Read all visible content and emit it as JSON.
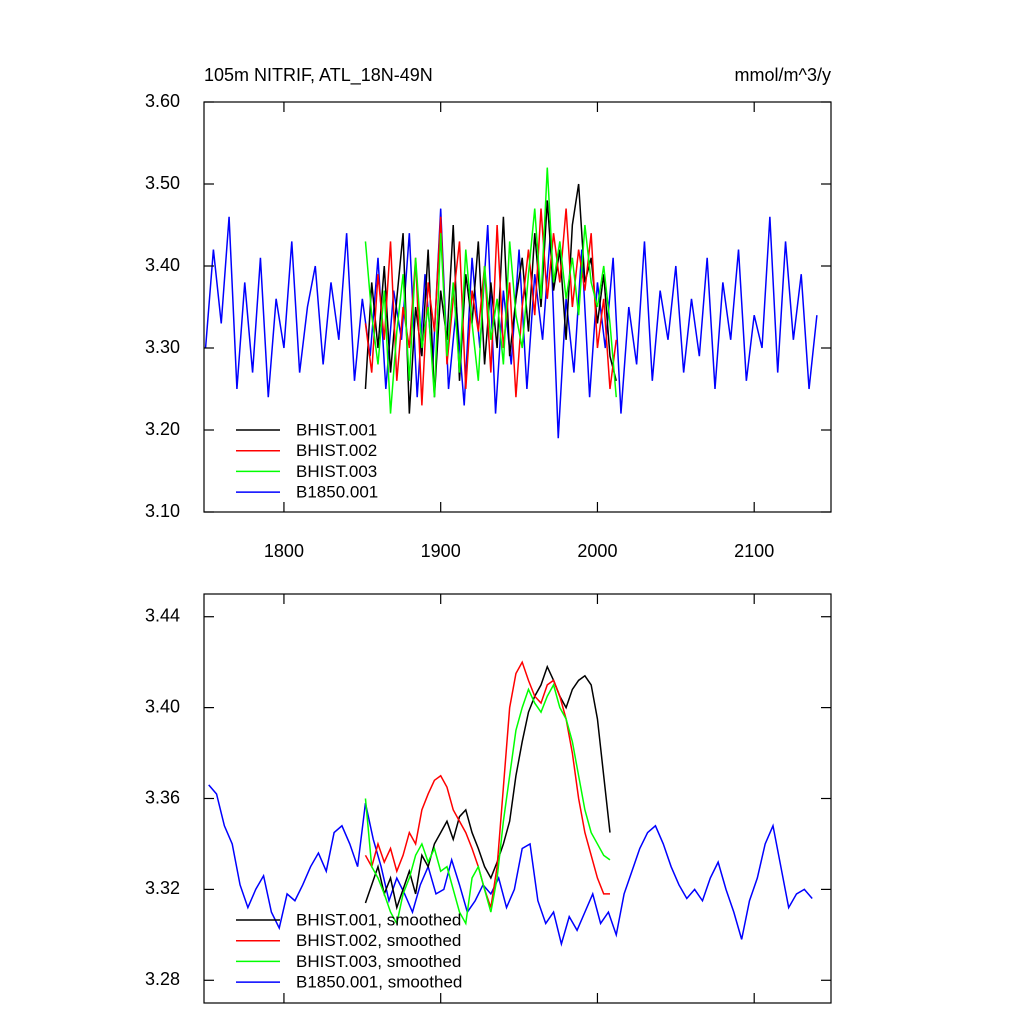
{
  "chart_data": [
    {
      "type": "line",
      "title": "105m NITRIF, ATL_18N-49N",
      "units": "mmol/m^3/y",
      "xlim": [
        1749,
        2149
      ],
      "ylim": [
        3.1,
        3.6
      ],
      "xticks": [
        1800,
        1900,
        2000,
        2100
      ],
      "xtick_labels": true,
      "yticks": [
        {
          "value": 3.1,
          "label": "3.10"
        },
        {
          "value": 3.2,
          "label": "3.20"
        },
        {
          "value": 3.3,
          "label": "3.30"
        },
        {
          "value": 3.4,
          "label": "3.40"
        },
        {
          "value": 3.5,
          "label": "3.50"
        },
        {
          "value": 3.6,
          "label": "3.60"
        }
      ],
      "legend": "lower left",
      "series": [
        {
          "name": "B1850.001",
          "color": "#0000ff",
          "x": [
            1750,
            1755,
            1760,
            1765,
            1770,
            1775,
            1780,
            1785,
            1790,
            1795,
            1800,
            1805,
            1810,
            1815,
            1820,
            1825,
            1830,
            1835,
            1840,
            1845,
            1850,
            1855,
            1860,
            1865,
            1870,
            1875,
            1880,
            1885,
            1890,
            1895,
            1900,
            1905,
            1910,
            1915,
            1920,
            1925,
            1930,
            1935,
            1940,
            1945,
            1950,
            1955,
            1960,
            1965,
            1970,
            1975,
            1980,
            1985,
            1990,
            1995,
            2000,
            2005,
            2010,
            2015,
            2020,
            2025,
            2030,
            2035,
            2040,
            2045,
            2050,
            2055,
            2060,
            2065,
            2070,
            2075,
            2080,
            2085,
            2090,
            2095,
            2100,
            2105,
            2110,
            2115,
            2120,
            2125,
            2130,
            2135,
            2140
          ],
          "values": [
            3.3,
            3.42,
            3.33,
            3.46,
            3.25,
            3.38,
            3.27,
            3.41,
            3.24,
            3.36,
            3.3,
            3.43,
            3.27,
            3.35,
            3.4,
            3.28,
            3.38,
            3.31,
            3.44,
            3.26,
            3.36,
            3.29,
            3.41,
            3.25,
            3.37,
            3.31,
            3.44,
            3.24,
            3.39,
            3.28,
            3.47,
            3.25,
            3.35,
            3.23,
            3.41,
            3.3,
            3.45,
            3.22,
            3.37,
            3.28,
            3.42,
            3.25,
            3.39,
            3.31,
            3.44,
            3.19,
            3.36,
            3.27,
            3.42,
            3.24,
            3.38,
            3.3,
            3.41,
            3.22,
            3.35,
            3.28,
            3.43,
            3.26,
            3.37,
            3.31,
            3.4,
            3.27,
            3.36,
            3.29,
            3.41,
            3.25,
            3.38,
            3.31,
            3.42,
            3.26,
            3.34,
            3.3,
            3.46,
            3.27,
            3.43,
            3.31,
            3.39,
            3.25,
            3.34
          ]
        },
        {
          "name": "BHIST.001",
          "color": "#000000",
          "x": [
            1852,
            1856,
            1860,
            1864,
            1868,
            1872,
            1876,
            1880,
            1884,
            1888,
            1892,
            1896,
            1900,
            1904,
            1908,
            1912,
            1916,
            1920,
            1924,
            1928,
            1932,
            1936,
            1940,
            1944,
            1948,
            1952,
            1956,
            1960,
            1964,
            1968,
            1972,
            1976,
            1980,
            1984,
            1988,
            1992,
            1996,
            2000,
            2004,
            2008,
            2012
          ],
          "values": [
            3.25,
            3.38,
            3.3,
            3.4,
            3.27,
            3.36,
            3.44,
            3.22,
            3.35,
            3.29,
            3.42,
            3.24,
            3.37,
            3.31,
            3.45,
            3.26,
            3.39,
            3.33,
            3.43,
            3.28,
            3.38,
            3.3,
            3.46,
            3.29,
            3.36,
            3.41,
            3.32,
            3.44,
            3.35,
            3.48,
            3.37,
            3.42,
            3.31,
            3.45,
            3.5,
            3.38,
            3.41,
            3.33,
            3.39,
            3.29,
            3.26
          ]
        },
        {
          "name": "BHIST.002",
          "color": "#ff0000",
          "x": [
            1852,
            1856,
            1860,
            1864,
            1868,
            1872,
            1876,
            1880,
            1884,
            1888,
            1892,
            1896,
            1900,
            1904,
            1908,
            1912,
            1916,
            1920,
            1924,
            1928,
            1932,
            1936,
            1940,
            1944,
            1948,
            1952,
            1956,
            1960,
            1964,
            1968,
            1972,
            1976,
            1980,
            1984,
            1988,
            1992,
            1996,
            2000,
            2004,
            2008,
            2012
          ],
          "values": [
            3.33,
            3.27,
            3.39,
            3.31,
            3.43,
            3.26,
            3.35,
            3.3,
            3.41,
            3.23,
            3.38,
            3.32,
            3.46,
            3.28,
            3.36,
            3.43,
            3.25,
            3.37,
            3.32,
            3.4,
            3.27,
            3.45,
            3.3,
            3.38,
            3.24,
            3.35,
            3.42,
            3.34,
            3.47,
            3.36,
            3.44,
            3.38,
            3.47,
            3.35,
            3.42,
            3.37,
            3.44,
            3.3,
            3.36,
            3.25,
            3.31
          ]
        },
        {
          "name": "BHIST.003",
          "color": "#00ff00",
          "x": [
            1852,
            1856,
            1860,
            1864,
            1868,
            1872,
            1876,
            1880,
            1884,
            1888,
            1892,
            1896,
            1900,
            1904,
            1908,
            1912,
            1916,
            1920,
            1924,
            1928,
            1932,
            1936,
            1940,
            1944,
            1948,
            1952,
            1956,
            1960,
            1964,
            1968,
            1972,
            1976,
            1980,
            1984,
            1988,
            1992,
            1996,
            2000,
            2004,
            2008,
            2012
          ],
          "values": [
            3.43,
            3.34,
            3.28,
            3.37,
            3.22,
            3.32,
            3.39,
            3.26,
            3.41,
            3.3,
            3.35,
            3.24,
            3.44,
            3.29,
            3.38,
            3.27,
            3.42,
            3.33,
            3.26,
            3.4,
            3.31,
            3.36,
            3.28,
            3.43,
            3.34,
            3.3,
            3.39,
            3.47,
            3.36,
            3.52,
            3.38,
            3.43,
            3.36,
            3.41,
            3.34,
            3.45,
            3.38,
            3.35,
            3.4,
            3.33,
            3.24
          ]
        }
      ]
    },
    {
      "type": "line",
      "xlim": [
        1749,
        2149
      ],
      "ylim": [
        3.27,
        3.45
      ],
      "xticks": [
        1800,
        1900,
        2000,
        2100
      ],
      "xtick_labels": false,
      "yticks": [
        3.28,
        3.32,
        3.36,
        {
          "value": 3.4,
          "label": "3.40"
        },
        3.44
      ],
      "legend": "lower left",
      "series": [
        {
          "name": "B1850.001, smoothed",
          "color": "#0000ff",
          "x": [
            1752,
            1757,
            1762,
            1767,
            1772,
            1777,
            1782,
            1787,
            1792,
            1797,
            1802,
            1807,
            1812,
            1817,
            1822,
            1827,
            1832,
            1837,
            1842,
            1847,
            1852,
            1857,
            1862,
            1867,
            1872,
            1877,
            1882,
            1887,
            1892,
            1897,
            1902,
            1907,
            1912,
            1917,
            1922,
            1927,
            1932,
            1937,
            1942,
            1947,
            1952,
            1957,
            1962,
            1967,
            1972,
            1977,
            1982,
            1987,
            1992,
            1997,
            2002,
            2007,
            2012,
            2017,
            2022,
            2027,
            2032,
            2037,
            2042,
            2047,
            2052,
            2057,
            2062,
            2067,
            2072,
            2077,
            2082,
            2087,
            2092,
            2097,
            2102,
            2107,
            2112,
            2117,
            2122,
            2127,
            2132,
            2137
          ],
          "values": [
            3.366,
            3.362,
            3.348,
            3.34,
            3.322,
            3.312,
            3.32,
            3.326,
            3.31,
            3.303,
            3.318,
            3.315,
            3.322,
            3.33,
            3.336,
            3.328,
            3.345,
            3.348,
            3.34,
            3.33,
            3.358,
            3.342,
            3.33,
            3.315,
            3.325,
            3.318,
            3.31,
            3.322,
            3.33,
            3.318,
            3.32,
            3.333,
            3.322,
            3.31,
            3.315,
            3.322,
            3.318,
            3.325,
            3.312,
            3.32,
            3.338,
            3.34,
            3.315,
            3.305,
            3.31,
            3.296,
            3.308,
            3.302,
            3.31,
            3.318,
            3.305,
            3.31,
            3.3,
            3.318,
            3.328,
            3.338,
            3.345,
            3.348,
            3.34,
            3.33,
            3.322,
            3.316,
            3.32,
            3.315,
            3.325,
            3.332,
            3.32,
            3.31,
            3.298,
            3.315,
            3.325,
            3.34,
            3.348,
            3.33,
            3.312,
            3.318,
            3.32,
            3.316
          ]
        },
        {
          "name": "BHIST.001, smoothed",
          "color": "#000000",
          "x": [
            1852,
            1856,
            1860,
            1864,
            1868,
            1872,
            1876,
            1880,
            1884,
            1888,
            1892,
            1896,
            1900,
            1904,
            1908,
            1912,
            1916,
            1920,
            1924,
            1928,
            1932,
            1936,
            1940,
            1944,
            1948,
            1952,
            1956,
            1960,
            1964,
            1968,
            1972,
            1976,
            1980,
            1984,
            1988,
            1992,
            1996,
            2000,
            2004,
            2008
          ],
          "values": [
            3.314,
            3.322,
            3.33,
            3.318,
            3.325,
            3.312,
            3.32,
            3.328,
            3.318,
            3.335,
            3.33,
            3.34,
            3.345,
            3.35,
            3.342,
            3.352,
            3.355,
            3.345,
            3.338,
            3.33,
            3.325,
            3.332,
            3.34,
            3.35,
            3.37,
            3.385,
            3.398,
            3.405,
            3.41,
            3.418,
            3.412,
            3.405,
            3.4,
            3.408,
            3.412,
            3.414,
            3.41,
            3.395,
            3.37,
            3.345
          ]
        },
        {
          "name": "BHIST.002, smoothed",
          "color": "#ff0000",
          "x": [
            1852,
            1856,
            1860,
            1864,
            1868,
            1872,
            1876,
            1880,
            1884,
            1888,
            1892,
            1896,
            1900,
            1904,
            1908,
            1912,
            1916,
            1920,
            1924,
            1928,
            1932,
            1936,
            1940,
            1944,
            1948,
            1952,
            1956,
            1960,
            1964,
            1968,
            1972,
            1976,
            1980,
            1984,
            1988,
            1992,
            1996,
            2000,
            2004,
            2008
          ],
          "values": [
            3.335,
            3.33,
            3.34,
            3.332,
            3.338,
            3.328,
            3.335,
            3.345,
            3.34,
            3.355,
            3.362,
            3.368,
            3.37,
            3.365,
            3.355,
            3.35,
            3.345,
            3.338,
            3.33,
            3.32,
            3.312,
            3.33,
            3.365,
            3.4,
            3.415,
            3.42,
            3.412,
            3.405,
            3.402,
            3.41,
            3.412,
            3.405,
            3.395,
            3.38,
            3.36,
            3.345,
            3.335,
            3.325,
            3.318,
            3.318
          ]
        },
        {
          "name": "BHIST.003, smoothed",
          "color": "#00ff00",
          "x": [
            1852,
            1856,
            1860,
            1864,
            1868,
            1872,
            1876,
            1880,
            1884,
            1888,
            1892,
            1896,
            1900,
            1904,
            1908,
            1912,
            1916,
            1920,
            1924,
            1928,
            1932,
            1936,
            1940,
            1944,
            1948,
            1952,
            1956,
            1960,
            1964,
            1968,
            1972,
            1976,
            1980,
            1984,
            1988,
            1992,
            1996,
            2000,
            2004,
            2008
          ],
          "values": [
            3.36,
            3.33,
            3.325,
            3.318,
            3.31,
            3.305,
            3.318,
            3.325,
            3.335,
            3.34,
            3.332,
            3.338,
            3.328,
            3.33,
            3.32,
            3.31,
            3.305,
            3.325,
            3.33,
            3.32,
            3.31,
            3.325,
            3.35,
            3.37,
            3.39,
            3.4,
            3.408,
            3.402,
            3.398,
            3.405,
            3.41,
            3.4,
            3.395,
            3.385,
            3.37,
            3.355,
            3.345,
            3.34,
            3.335,
            3.333
          ]
        }
      ]
    }
  ]
}
